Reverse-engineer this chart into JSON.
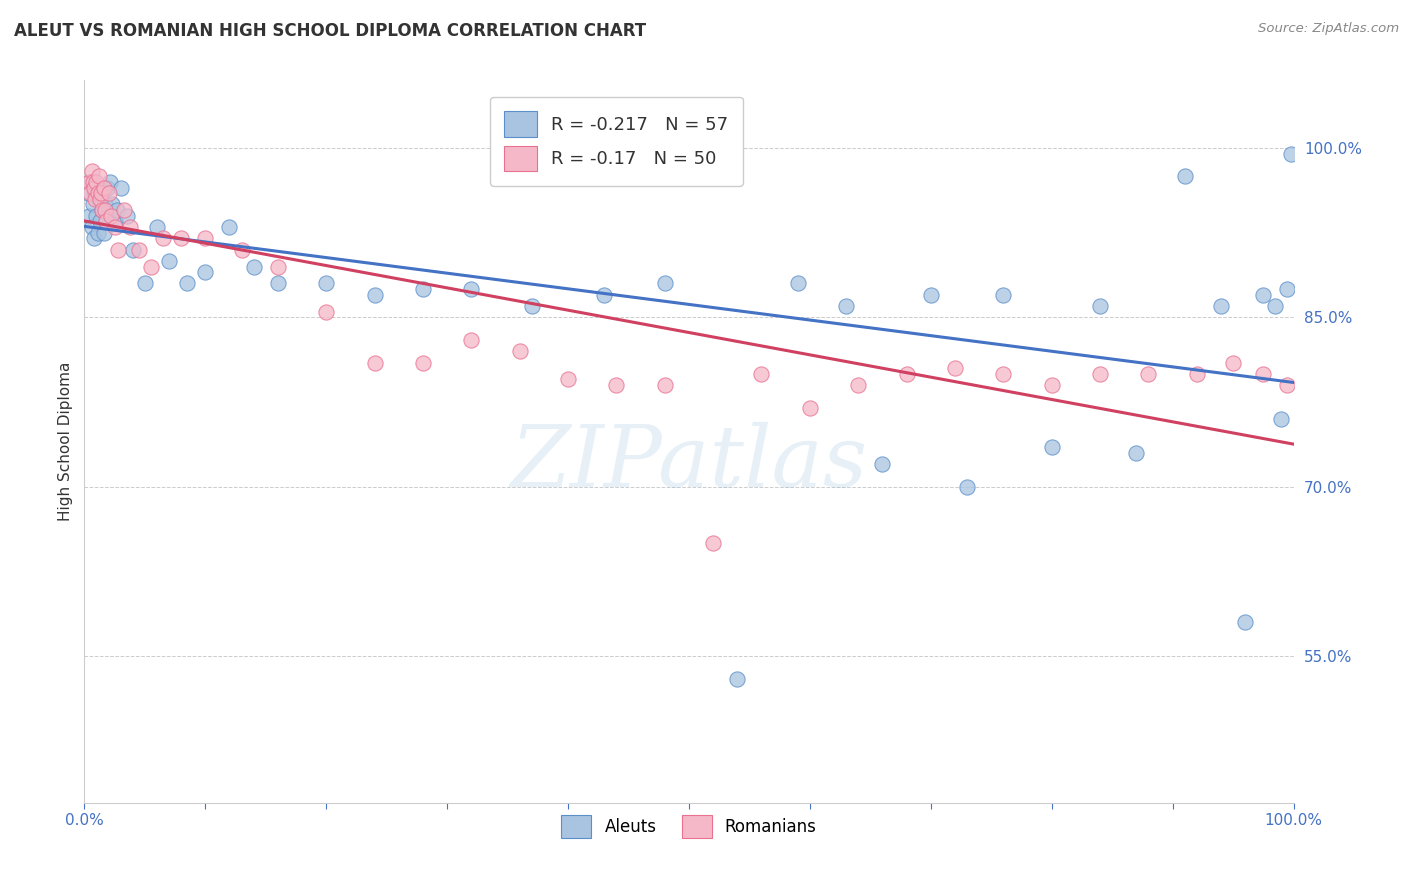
{
  "title": "ALEUT VS ROMANIAN HIGH SCHOOL DIPLOMA CORRELATION CHART",
  "source": "Source: ZipAtlas.com",
  "ylabel": "High School Diploma",
  "ytick_labels": [
    "55.0%",
    "70.0%",
    "85.0%",
    "100.0%"
  ],
  "ytick_values": [
    0.55,
    0.7,
    0.85,
    1.0
  ],
  "aleut_color": "#a8c4e0",
  "romanian_color": "#f4b8c8",
  "aleut_edge_color": "#5b8fc9",
  "romanian_edge_color": "#e87090",
  "aleut_line_color": "#4472c4",
  "romanian_line_color": "#d04060",
  "watermark_color": "#c8d8e8",
  "watermark_text": "ZIPatlas",
  "axis_label_color": "#4472c4",
  "title_color": "#333333",
  "source_color": "#888888",
  "background_color": "#ffffff",
  "grid_color": "#cccccc",
  "aleut_R": -0.217,
  "aleut_N": 57,
  "romanian_R": -0.17,
  "romanian_N": 50,
  "aleut_x": [
    0.003,
    0.004,
    0.005,
    0.006,
    0.007,
    0.008,
    0.009,
    0.01,
    0.011,
    0.012,
    0.013,
    0.014,
    0.015,
    0.016,
    0.017,
    0.018,
    0.019,
    0.021,
    0.023,
    0.025,
    0.027,
    0.03,
    0.035,
    0.04,
    0.05,
    0.06,
    0.07,
    0.085,
    0.1,
    0.12,
    0.14,
    0.16,
    0.2,
    0.24,
    0.28,
    0.32,
    0.37,
    0.43,
    0.48,
    0.54,
    0.59,
    0.63,
    0.66,
    0.7,
    0.73,
    0.76,
    0.8,
    0.84,
    0.87,
    0.91,
    0.94,
    0.96,
    0.975,
    0.985,
    0.99,
    0.995,
    0.998
  ],
  "aleut_y": [
    0.96,
    0.94,
    0.97,
    0.93,
    0.95,
    0.92,
    0.96,
    0.94,
    0.925,
    0.955,
    0.935,
    0.96,
    0.945,
    0.925,
    0.95,
    0.935,
    0.965,
    0.97,
    0.95,
    0.935,
    0.945,
    0.965,
    0.94,
    0.91,
    0.88,
    0.93,
    0.9,
    0.88,
    0.89,
    0.93,
    0.895,
    0.88,
    0.88,
    0.87,
    0.875,
    0.875,
    0.86,
    0.87,
    0.88,
    0.53,
    0.88,
    0.86,
    0.72,
    0.87,
    0.7,
    0.87,
    0.735,
    0.86,
    0.73,
    0.975,
    0.86,
    0.58,
    0.87,
    0.86,
    0.76,
    0.875,
    0.995
  ],
  "romanian_x": [
    0.004,
    0.005,
    0.006,
    0.007,
    0.008,
    0.009,
    0.01,
    0.011,
    0.012,
    0.013,
    0.014,
    0.015,
    0.016,
    0.017,
    0.018,
    0.02,
    0.022,
    0.025,
    0.028,
    0.033,
    0.038,
    0.045,
    0.055,
    0.065,
    0.08,
    0.1,
    0.13,
    0.16,
    0.2,
    0.24,
    0.28,
    0.32,
    0.36,
    0.4,
    0.44,
    0.48,
    0.52,
    0.56,
    0.6,
    0.64,
    0.68,
    0.72,
    0.76,
    0.8,
    0.84,
    0.88,
    0.92,
    0.95,
    0.975,
    0.995
  ],
  "romanian_y": [
    0.97,
    0.96,
    0.98,
    0.97,
    0.965,
    0.955,
    0.97,
    0.96,
    0.975,
    0.955,
    0.96,
    0.945,
    0.965,
    0.945,
    0.935,
    0.96,
    0.94,
    0.93,
    0.91,
    0.945,
    0.93,
    0.91,
    0.895,
    0.92,
    0.92,
    0.92,
    0.91,
    0.895,
    0.855,
    0.81,
    0.81,
    0.83,
    0.82,
    0.795,
    0.79,
    0.79,
    0.65,
    0.8,
    0.77,
    0.79,
    0.8,
    0.805,
    0.8,
    0.79,
    0.8,
    0.8,
    0.8,
    0.81,
    0.8,
    0.79
  ],
  "xlim": [
    0.0,
    1.0
  ],
  "ylim": [
    0.42,
    1.06
  ],
  "marker_size": 120
}
